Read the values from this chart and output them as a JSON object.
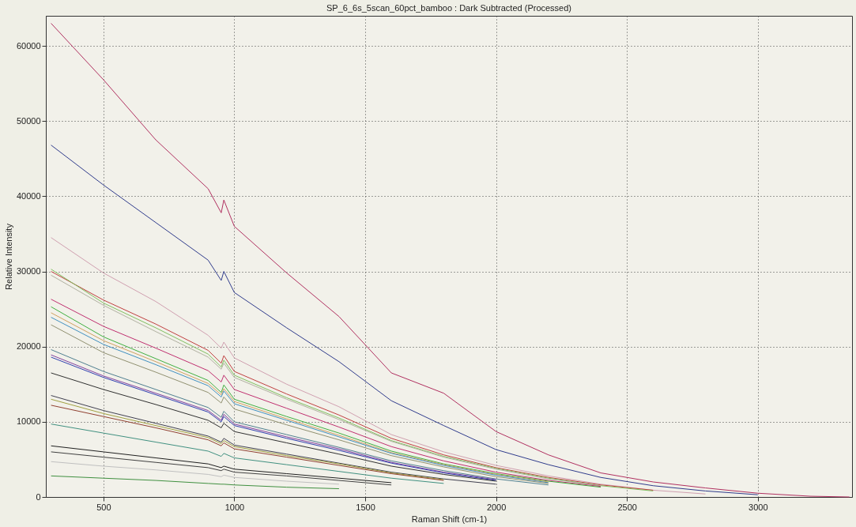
{
  "chart_data": {
    "type": "line",
    "title": "SP_6_6s_5scan_60pct_bamboo : Dark Subtracted (Processed)",
    "xlabel": "Raman Shift (cm-1)",
    "ylabel": "Relative Intensity",
    "x": [
      300,
      500,
      700,
      900,
      950,
      960,
      1000,
      1200,
      1400,
      1600,
      1800,
      2000,
      2200,
      2400,
      2600,
      2800,
      3000,
      3200,
      3350
    ],
    "xlim": [
      280,
      3360
    ],
    "xticks": [
      500,
      1000,
      1500,
      2000,
      2500,
      3000
    ],
    "ylim": [
      0,
      64000
    ],
    "yticks": [
      0,
      10000,
      20000,
      30000,
      40000,
      50000,
      60000
    ],
    "grid": true,
    "legend": false,
    "marker": "none",
    "line_style": "solid",
    "series": [
      {
        "color": "#b03060",
        "values": [
          63000,
          55500,
          47500,
          41000,
          37800,
          39500,
          36000,
          29800,
          24000,
          16500,
          13800,
          8700,
          5600,
          3200,
          2000,
          1200,
          500,
          100,
          0
        ]
      },
      {
        "color": "#303c8c",
        "values": [
          46800,
          41500,
          36500,
          31500,
          28800,
          30000,
          27200,
          22500,
          18000,
          12800,
          9500,
          6300,
          4300,
          2600,
          1500,
          800,
          300,
          null,
          null
        ]
      },
      {
        "color": "#d0a0b0",
        "values": [
          34500,
          29800,
          26000,
          21500,
          19800,
          20600,
          18500,
          15000,
          12000,
          8300,
          6000,
          4200,
          2800,
          1700,
          900,
          400,
          null,
          null,
          null
        ]
      },
      {
        "color": "#c04040",
        "values": [
          30000,
          26200,
          23000,
          19500,
          17800,
          18800,
          16700,
          13700,
          10900,
          7800,
          5600,
          3900,
          2600,
          1600,
          900,
          null,
          null,
          null,
          null
        ]
      },
      {
        "color": "#80c060",
        "values": [
          30300,
          25800,
          22500,
          19000,
          17300,
          18200,
          16200,
          13200,
          10500,
          7500,
          5400,
          3800,
          2500,
          1500,
          800,
          null,
          null,
          null,
          null
        ]
      },
      {
        "color": "#b0b0a0",
        "values": [
          29500,
          25500,
          22000,
          18600,
          17000,
          17800,
          15900,
          13000,
          10300,
          7400,
          5300,
          3700,
          2400,
          1500,
          null,
          null,
          null,
          null,
          null
        ]
      },
      {
        "color": "#c03070",
        "values": [
          26300,
          22700,
          19800,
          16800,
          15300,
          16200,
          14300,
          11800,
          9300,
          6700,
          4800,
          3300,
          2200,
          1400,
          null,
          null,
          null,
          null,
          null
        ]
      },
      {
        "color": "#40b040",
        "values": [
          25300,
          21300,
          18400,
          15500,
          13900,
          14900,
          13000,
          10700,
          8500,
          6100,
          4400,
          3100,
          2100,
          1300,
          null,
          null,
          null,
          null,
          null
        ]
      },
      {
        "color": "#d0a060",
        "values": [
          24500,
          20800,
          18000,
          15100,
          13600,
          14400,
          12700,
          10400,
          8200,
          5900,
          4300,
          3000,
          2000,
          null,
          null,
          null,
          null,
          null,
          null
        ]
      },
      {
        "color": "#4090c0",
        "values": [
          23900,
          20300,
          17600,
          14800,
          13300,
          14100,
          12400,
          10200,
          8000,
          5800,
          4200,
          2900,
          1900,
          null,
          null,
          null,
          null,
          null,
          null
        ]
      },
      {
        "color": "#909070",
        "values": [
          22900,
          19200,
          16600,
          13900,
          12500,
          13300,
          11700,
          9600,
          7600,
          5500,
          4000,
          2700,
          1800,
          null,
          null,
          null,
          null,
          null,
          null
        ]
      },
      {
        "color": "#508090",
        "values": [
          19600,
          16700,
          14300,
          11900,
          10600,
          11400,
          10000,
          8300,
          6600,
          4800,
          3500,
          2400,
          1600,
          null,
          null,
          null,
          null,
          null,
          null
        ]
      },
      {
        "color": "#8040a0",
        "values": [
          18900,
          16100,
          13800,
          11500,
          10200,
          11000,
          9700,
          8000,
          6400,
          4600,
          3300,
          2300,
          null,
          null,
          null,
          null,
          null,
          null,
          null
        ]
      },
      {
        "color": "#3040b0",
        "values": [
          18600,
          15900,
          13600,
          11300,
          10000,
          10700,
          9500,
          7800,
          6200,
          4500,
          3200,
          2200,
          null,
          null,
          null,
          null,
          null,
          null,
          null
        ]
      },
      {
        "color": "#303030",
        "values": [
          16500,
          14300,
          12300,
          10200,
          9200,
          9800,
          8700,
          7200,
          5700,
          4100,
          3000,
          2100,
          null,
          null,
          null,
          null,
          null,
          null,
          null
        ]
      },
      {
        "color": "#404050",
        "values": [
          13500,
          11500,
          9800,
          8100,
          7300,
          7800,
          6900,
          5700,
          4500,
          3300,
          2400,
          1700,
          null,
          null,
          null,
          null,
          null,
          null,
          null
        ]
      },
      {
        "color": "#a0a040",
        "values": [
          13000,
          11100,
          9500,
          7900,
          7100,
          7500,
          6700,
          5500,
          4400,
          3200,
          2300,
          null,
          null,
          null,
          null,
          null,
          null,
          null,
          null
        ]
      },
      {
        "color": "#904030",
        "values": [
          12200,
          10700,
          9200,
          7600,
          6800,
          7200,
          6400,
          5300,
          4200,
          3100,
          2200,
          null,
          null,
          null,
          null,
          null,
          null,
          null,
          null
        ]
      },
      {
        "color": "#409080",
        "values": [
          9700,
          8500,
          7300,
          6100,
          5400,
          5800,
          5200,
          4300,
          3400,
          2500,
          1800,
          null,
          null,
          null,
          null,
          null,
          null,
          null,
          null
        ]
      },
      {
        "color": "#202020",
        "values": [
          6800,
          6000,
          5200,
          4400,
          3900,
          4100,
          3700,
          3100,
          2500,
          1900,
          null,
          null,
          null,
          null,
          null,
          null,
          null,
          null,
          null
        ]
      },
      {
        "color": "#404040",
        "values": [
          6000,
          5300,
          4600,
          3900,
          3500,
          3700,
          3300,
          2800,
          2200,
          1600,
          null,
          null,
          null,
          null,
          null,
          null,
          null,
          null,
          null
        ]
      },
      {
        "color": "#c0c0c0",
        "values": [
          4700,
          4100,
          3600,
          3000,
          2700,
          2900,
          2600,
          2100,
          1700,
          null,
          null,
          null,
          null,
          null,
          null,
          null,
          null,
          null,
          null
        ]
      },
      {
        "color": "#409040",
        "values": [
          2800,
          2500,
          2200,
          1800,
          1700,
          1700,
          1600,
          1300,
          1100,
          null,
          null,
          null,
          null,
          null,
          null,
          null,
          null,
          null,
          null
        ]
      }
    ]
  }
}
